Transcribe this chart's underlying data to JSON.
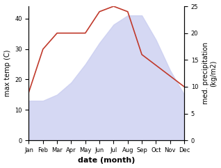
{
  "months": [
    1,
    2,
    3,
    4,
    5,
    6,
    7,
    8,
    9,
    10,
    11,
    12
  ],
  "month_labels": [
    "Jan",
    "Feb",
    "Mar",
    "Apr",
    "May",
    "Jun",
    "Jul",
    "Aug",
    "Sep",
    "Oct",
    "Nov",
    "Dec"
  ],
  "max_temp": [
    13,
    13,
    15,
    19,
    25,
    32,
    38,
    41,
    41,
    33,
    23,
    15
  ],
  "precipitation": [
    9,
    17,
    20,
    20,
    20,
    24,
    25,
    24,
    16,
    14,
    12,
    10
  ],
  "fill_color": "#c8ccf0",
  "fill_alpha": 0.75,
  "precip_color": "#c0392b",
  "ylabel_left": "max temp (C)",
  "ylabel_right": "med. precipitation\n(kg/m2)",
  "xlabel": "date (month)",
  "ylim_left": [
    0,
    44
  ],
  "ylim_right": [
    0,
    25
  ],
  "yticks_left": [
    0,
    10,
    20,
    30,
    40
  ],
  "yticks_right": [
    0,
    5,
    10,
    15,
    20,
    25
  ],
  "background_color": "#ffffff",
  "fontsize_ticks": 6,
  "fontsize_ylabel": 7,
  "fontsize_xlabel": 8
}
